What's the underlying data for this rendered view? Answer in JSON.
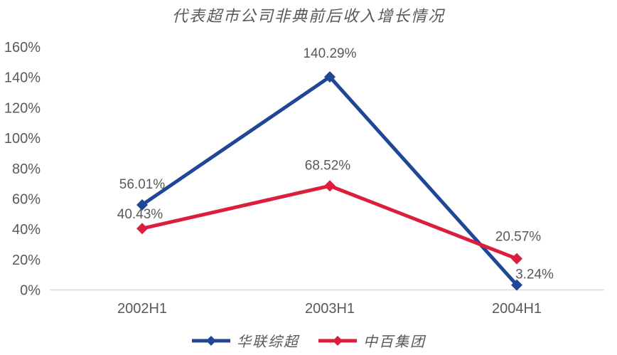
{
  "title": "代表超市公司非典前后收入增长情况",
  "colors": {
    "text": "#595959",
    "axis_line": "#d9d9d9",
    "series1": "#1f4796",
    "series2": "#dc1e3c"
  },
  "chart_data": {
    "type": "line",
    "title": "代表超市公司非典前后收入增长情况",
    "categories": [
      "2002H1",
      "2003H1",
      "2004H1"
    ],
    "series": [
      {
        "name": "华联综超",
        "color": "#1f4796",
        "values": [
          56.01,
          140.29,
          3.24
        ],
        "labels": [
          "56.01%",
          "140.29%",
          "3.24%"
        ]
      },
      {
        "name": "中百集团",
        "color": "#dc1e3c",
        "values": [
          40.43,
          68.52,
          20.57
        ],
        "labels": [
          "40.43%",
          "68.52%",
          "20.57%"
        ]
      }
    ],
    "xlabel": "",
    "ylabel": "",
    "ylim": [
      0,
      160
    ],
    "ytick_step": 20,
    "ytick_labels": [
      "0%",
      "20%",
      "40%",
      "60%",
      "80%",
      "100%",
      "120%",
      "140%",
      "160%"
    ],
    "grid": false,
    "marker": "diamond",
    "legend_position": "bottom",
    "label_offsets": [
      [
        [
          0,
          -23
        ],
        [
          0,
          -27
        ],
        [
          25,
          -9
        ]
      ],
      [
        [
          -3,
          -14
        ],
        [
          -3,
          -23
        ],
        [
          2,
          -25
        ]
      ]
    ]
  }
}
